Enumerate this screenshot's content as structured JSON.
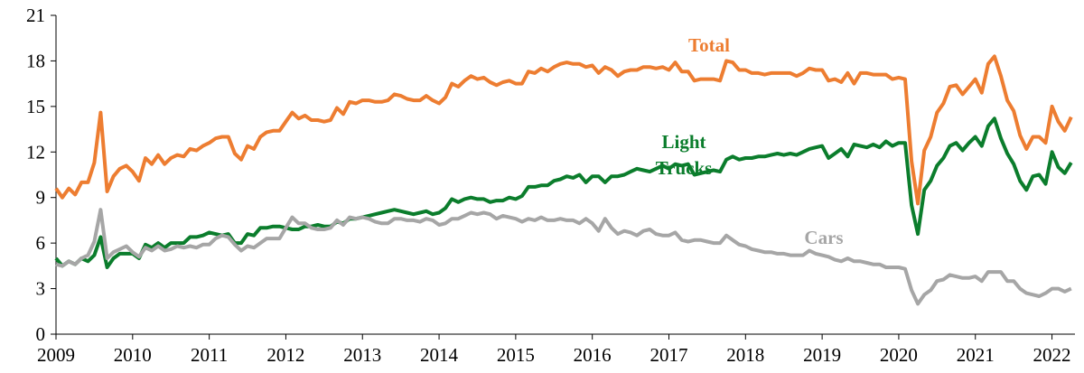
{
  "chart_data": {
    "type": "line",
    "x": [
      2009,
      2009.083,
      2009.167,
      2009.25,
      2009.333,
      2009.417,
      2009.5,
      2009.583,
      2009.667,
      2009.75,
      2009.833,
      2009.917,
      2010,
      2010.083,
      2010.167,
      2010.25,
      2010.333,
      2010.417,
      2010.5,
      2010.583,
      2010.667,
      2010.75,
      2010.833,
      2010.917,
      2011,
      2011.083,
      2011.167,
      2011.25,
      2011.333,
      2011.417,
      2011.5,
      2011.583,
      2011.667,
      2011.75,
      2011.833,
      2011.917,
      2012,
      2012.083,
      2012.167,
      2012.25,
      2012.333,
      2012.417,
      2012.5,
      2012.583,
      2012.667,
      2012.75,
      2012.833,
      2012.917,
      2013,
      2013.083,
      2013.167,
      2013.25,
      2013.333,
      2013.417,
      2013.5,
      2013.583,
      2013.667,
      2013.75,
      2013.833,
      2013.917,
      2014,
      2014.083,
      2014.167,
      2014.25,
      2014.333,
      2014.417,
      2014.5,
      2014.583,
      2014.667,
      2014.75,
      2014.833,
      2014.917,
      2015,
      2015.083,
      2015.167,
      2015.25,
      2015.333,
      2015.417,
      2015.5,
      2015.583,
      2015.667,
      2015.75,
      2015.833,
      2015.917,
      2016,
      2016.083,
      2016.167,
      2016.25,
      2016.333,
      2016.417,
      2016.5,
      2016.583,
      2016.667,
      2016.75,
      2016.833,
      2016.917,
      2017,
      2017.083,
      2017.167,
      2017.25,
      2017.333,
      2017.417,
      2017.5,
      2017.583,
      2017.667,
      2017.75,
      2017.833,
      2017.917,
      2018,
      2018.083,
      2018.167,
      2018.25,
      2018.333,
      2018.417,
      2018.5,
      2018.583,
      2018.667,
      2018.75,
      2018.833,
      2018.917,
      2019,
      2019.083,
      2019.167,
      2019.25,
      2019.333,
      2019.417,
      2019.5,
      2019.583,
      2019.667,
      2019.75,
      2019.833,
      2019.917,
      2020,
      2020.083,
      2020.167,
      2020.25,
      2020.333,
      2020.417,
      2020.5,
      2020.583,
      2020.667,
      2020.75,
      2020.833,
      2020.917,
      2021,
      2021.083,
      2021.167,
      2021.25,
      2021.333,
      2021.417,
      2021.5,
      2021.583,
      2021.667,
      2021.75,
      2021.833,
      2021.917,
      2022,
      2022.083,
      2022.167,
      2022.25
    ],
    "series": [
      {
        "name": "Total",
        "color": "#ed7d31",
        "values": [
          9.6,
          9.0,
          9.6,
          9.2,
          10.0,
          10.0,
          11.3,
          14.6,
          9.4,
          10.4,
          10.9,
          11.1,
          10.7,
          10.1,
          11.6,
          11.2,
          11.8,
          11.2,
          11.6,
          11.8,
          11.7,
          12.2,
          12.1,
          12.4,
          12.6,
          12.9,
          13.0,
          13.0,
          11.9,
          11.5,
          12.4,
          12.2,
          13.0,
          13.3,
          13.4,
          13.4,
          14.0,
          14.6,
          14.2,
          14.4,
          14.1,
          14.1,
          14.0,
          14.1,
          14.9,
          14.5,
          15.3,
          15.2,
          15.4,
          15.4,
          15.3,
          15.3,
          15.4,
          15.8,
          15.7,
          15.5,
          15.4,
          15.4,
          15.7,
          15.4,
          15.2,
          15.6,
          16.5,
          16.3,
          16.7,
          17.0,
          16.8,
          16.9,
          16.6,
          16.4,
          16.6,
          16.7,
          16.5,
          16.5,
          17.3,
          17.2,
          17.5,
          17.3,
          17.6,
          17.8,
          17.9,
          17.8,
          17.8,
          17.6,
          17.7,
          17.2,
          17.6,
          17.4,
          17.0,
          17.3,
          17.4,
          17.4,
          17.6,
          17.6,
          17.5,
          17.6,
          17.4,
          17.9,
          17.3,
          17.3,
          16.7,
          16.8,
          16.8,
          16.8,
          16.7,
          18.0,
          17.9,
          17.4,
          17.4,
          17.2,
          17.2,
          17.1,
          17.2,
          17.2,
          17.2,
          17.2,
          17.0,
          17.2,
          17.5,
          17.4,
          17.4,
          16.7,
          16.8,
          16.6,
          17.2,
          16.5,
          17.2,
          17.2,
          17.1,
          17.1,
          17.1,
          16.8,
          16.9,
          16.8,
          11.4,
          8.6,
          12.1,
          13.0,
          14.6,
          15.2,
          16.3,
          16.4,
          15.8,
          16.3,
          16.8,
          15.9,
          17.8,
          18.3,
          17.0,
          15.4,
          14.7,
          13.1,
          12.2,
          13.0,
          13.0,
          12.6,
          15.0,
          14.0,
          13.4,
          14.3
        ]
      },
      {
        "name": "Light Trucks",
        "color": "#0b7d2c",
        "values": [
          5.0,
          4.5,
          4.8,
          4.6,
          5.0,
          4.8,
          5.2,
          6.4,
          4.4,
          5.0,
          5.3,
          5.3,
          5.3,
          5.0,
          5.9,
          5.7,
          6.0,
          5.7,
          6.0,
          6.0,
          6.0,
          6.4,
          6.4,
          6.5,
          6.7,
          6.6,
          6.5,
          6.6,
          6.0,
          6.0,
          6.6,
          6.5,
          7.0,
          7.0,
          7.1,
          7.1,
          7.0,
          6.9,
          6.9,
          7.1,
          7.1,
          7.2,
          7.1,
          7.1,
          7.4,
          7.3,
          7.6,
          7.6,
          7.7,
          7.8,
          7.9,
          8.0,
          8.1,
          8.2,
          8.1,
          8.0,
          7.9,
          8.0,
          8.1,
          7.9,
          8.0,
          8.3,
          8.9,
          8.7,
          8.9,
          9.0,
          8.9,
          8.9,
          8.7,
          8.8,
          8.8,
          9.0,
          8.9,
          9.1,
          9.7,
          9.7,
          9.8,
          9.8,
          10.1,
          10.2,
          10.4,
          10.3,
          10.5,
          10.0,
          10.4,
          10.4,
          10.0,
          10.4,
          10.4,
          10.5,
          10.7,
          10.9,
          10.8,
          10.7,
          10.9,
          11.1,
          10.9,
          11.2,
          11.1,
          11.2,
          10.5,
          10.6,
          10.7,
          10.8,
          10.7,
          11.5,
          11.7,
          11.5,
          11.6,
          11.6,
          11.7,
          11.7,
          11.8,
          11.9,
          11.8,
          11.9,
          11.8,
          12.0,
          12.2,
          12.3,
          12.4,
          11.6,
          11.9,
          12.2,
          11.7,
          12.5,
          12.4,
          12.3,
          12.5,
          12.3,
          12.7,
          12.4,
          12.6,
          12.6,
          8.5,
          6.6,
          9.5,
          10.1,
          11.1,
          11.6,
          12.4,
          12.6,
          12.1,
          12.6,
          13.0,
          12.4,
          13.7,
          14.2,
          12.9,
          11.9,
          11.2,
          10.1,
          9.5,
          10.4,
          10.5,
          9.9,
          12.0,
          11.0,
          10.6,
          11.3
        ]
      },
      {
        "name": "Cars",
        "color": "#a6a6a6",
        "values": [
          4.6,
          4.5,
          4.8,
          4.6,
          5.0,
          5.2,
          6.1,
          8.2,
          5.0,
          5.4,
          5.6,
          5.8,
          5.4,
          5.1,
          5.7,
          5.5,
          5.8,
          5.5,
          5.6,
          5.8,
          5.7,
          5.8,
          5.7,
          5.9,
          5.9,
          6.3,
          6.5,
          6.4,
          5.9,
          5.5,
          5.8,
          5.7,
          6.0,
          6.3,
          6.3,
          6.3,
          7.0,
          7.7,
          7.3,
          7.3,
          7.0,
          6.9,
          6.9,
          7.0,
          7.5,
          7.2,
          7.7,
          7.6,
          7.7,
          7.6,
          7.4,
          7.3,
          7.3,
          7.6,
          7.6,
          7.5,
          7.5,
          7.4,
          7.6,
          7.5,
          7.2,
          7.3,
          7.6,
          7.6,
          7.8,
          8.0,
          7.9,
          8.0,
          7.9,
          7.6,
          7.8,
          7.7,
          7.6,
          7.4,
          7.6,
          7.5,
          7.7,
          7.5,
          7.5,
          7.6,
          7.5,
          7.5,
          7.3,
          7.6,
          7.3,
          6.8,
          7.6,
          7.0,
          6.6,
          6.8,
          6.7,
          6.5,
          6.8,
          6.9,
          6.6,
          6.5,
          6.5,
          6.7,
          6.2,
          6.1,
          6.2,
          6.2,
          6.1,
          6.0,
          6.0,
          6.5,
          6.2,
          5.9,
          5.8,
          5.6,
          5.5,
          5.4,
          5.4,
          5.3,
          5.3,
          5.2,
          5.2,
          5.2,
          5.5,
          5.3,
          5.2,
          5.1,
          4.9,
          4.8,
          5.0,
          4.8,
          4.8,
          4.7,
          4.6,
          4.6,
          4.4,
          4.4,
          4.4,
          4.3,
          2.9,
          2.0,
          2.6,
          2.9,
          3.5,
          3.6,
          3.9,
          3.8,
          3.7,
          3.7,
          3.8,
          3.5,
          4.1,
          4.1,
          4.1,
          3.5,
          3.5,
          3.0,
          2.7,
          2.6,
          2.5,
          2.7,
          3.0,
          3.0,
          2.8,
          3.0
        ]
      }
    ],
    "xlim": [
      2009,
      2022.3
    ],
    "xticks": [
      2009,
      2010,
      2011,
      2012,
      2013,
      2014,
      2015,
      2016,
      2017,
      2018,
      2019,
      2020,
      2021,
      2022
    ],
    "ylim": [
      0,
      21
    ],
    "yticks": [
      0,
      3,
      6,
      9,
      12,
      15,
      18,
      21
    ],
    "grid": false
  }
}
